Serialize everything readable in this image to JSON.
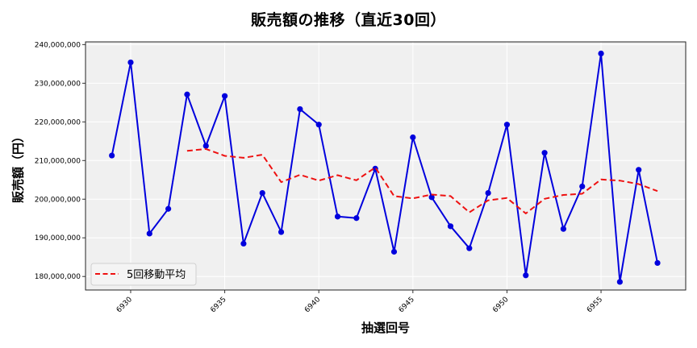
{
  "chart_data": {
    "type": "line",
    "title": "販売額の推移（直近30回）",
    "xlabel": "抽選回号",
    "ylabel": "販売額（円）",
    "x": [
      6929,
      6930,
      6931,
      6932,
      6933,
      6934,
      6935,
      6936,
      6937,
      6938,
      6939,
      6940,
      6941,
      6942,
      6943,
      6944,
      6945,
      6946,
      6947,
      6948,
      6949,
      6950,
      6951,
      6952,
      6953,
      6954,
      6955,
      6956,
      6957,
      6958
    ],
    "series": [
      {
        "name": "販売額",
        "style": "solid line with circle markers",
        "color": "#0000dd",
        "values": [
          211300000,
          235400000,
          191100000,
          197500000,
          227100000,
          213800000,
          226700000,
          188500000,
          201600000,
          191500000,
          223300000,
          219300000,
          195500000,
          195100000,
          207900000,
          186400000,
          216000000,
          200500000,
          193000000,
          187300000,
          201600000,
          219300000,
          180300000,
          212000000,
          192300000,
          203300000,
          237700000,
          178600000,
          207600000,
          183500000
        ],
        "in_legend": false
      },
      {
        "name": "5回移動平均",
        "style": "dashed",
        "color": "#ee1111",
        "values": [
          null,
          null,
          null,
          null,
          212500000,
          213000000,
          211200000,
          210700000,
          211500000,
          204400000,
          206300000,
          204800000,
          206200000,
          204900000,
          208200000,
          200800000,
          200200000,
          201200000,
          200800000,
          196600000,
          199700000,
          200300000,
          196300000,
          200100000,
          201100000,
          201400000,
          205100000,
          204800000,
          203900000,
          202100000
        ],
        "in_legend": true
      }
    ],
    "x_ticks": [
      6930,
      6935,
      6940,
      6945,
      6950,
      6955
    ],
    "x_tick_labels": [
      "6930",
      "6935",
      "6940",
      "6945",
      "6950",
      "6955"
    ],
    "y_ticks": [
      180000000,
      190000000,
      200000000,
      210000000,
      220000000,
      230000000,
      240000000
    ],
    "y_tick_labels": [
      "180,000,000",
      "190,000,000",
      "200,000,000",
      "210,000,000",
      "220,000,000",
      "230,000,000",
      "240,000,000"
    ],
    "xlim": [
      6927.6,
      6959.5
    ],
    "ylim": [
      176500000,
      240700000
    ],
    "grid": true,
    "legend_position": "lower left",
    "legend_entries": [
      "5回移動平均"
    ],
    "plot_background": "#f0f0f0"
  }
}
